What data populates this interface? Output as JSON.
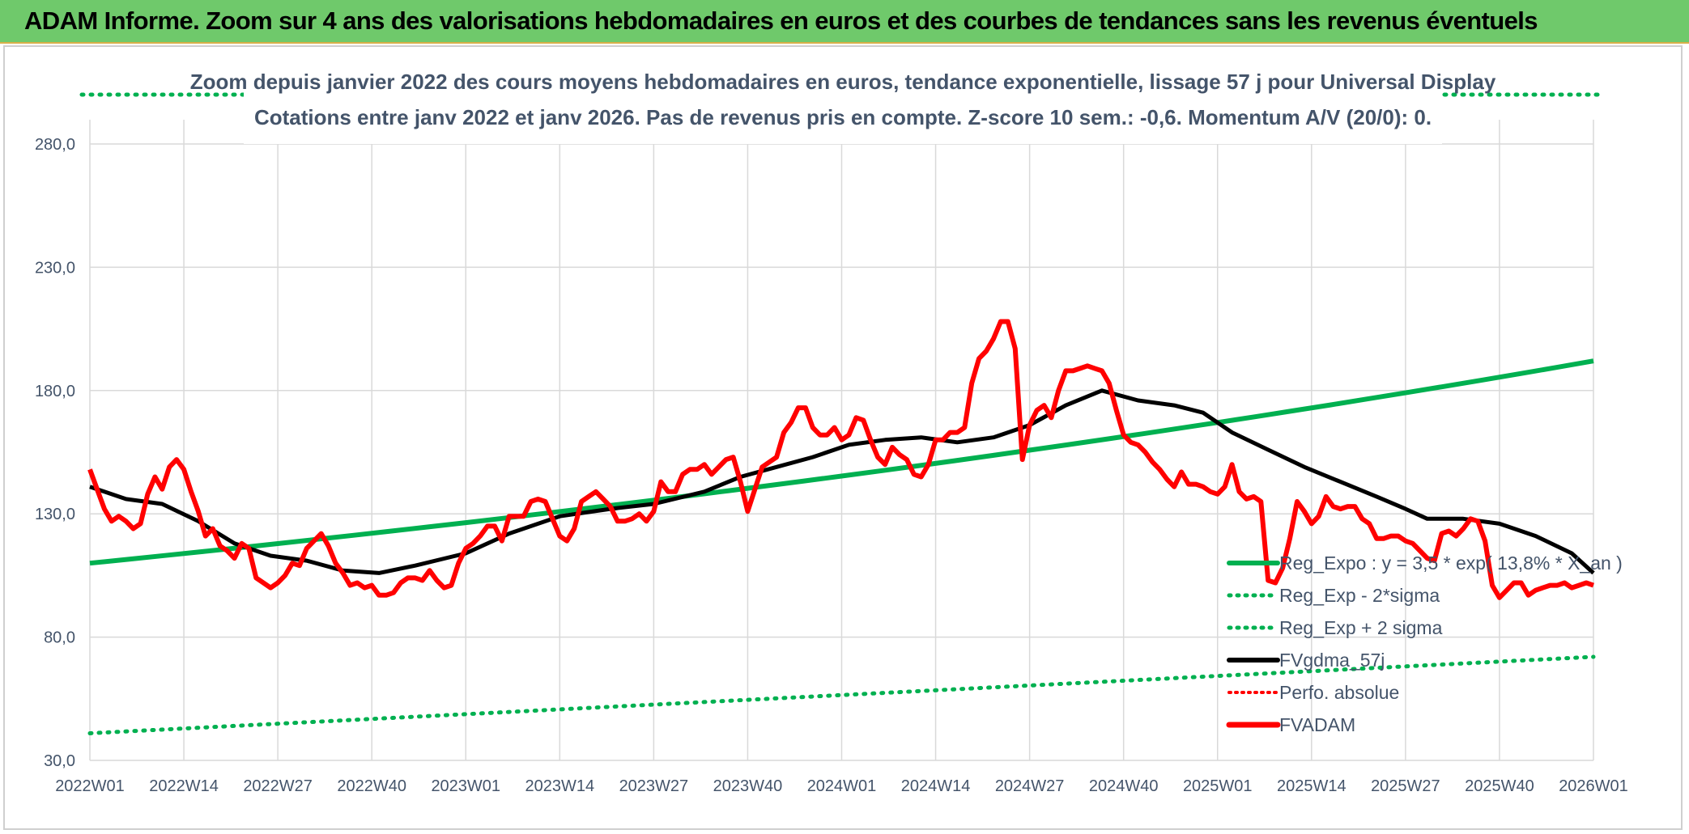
{
  "header": {
    "title": "ADAM Informe. Zoom sur 4 ans des valorisations hebdomadaires en euros et des courbes de tendances sans les revenus éventuels"
  },
  "colors": {
    "banner": "#6fc96b",
    "reg_exp": "#00b050",
    "fvadam": "#ff0000",
    "fvgdma": "#000000",
    "perfo": "#ff0000",
    "grid": "#d9d9d9",
    "text": "#44546a"
  },
  "chart_data": {
    "type": "line",
    "title": [
      "Zoom depuis janvier 2022 des cours moyens hebdomadaires en euros, tendance exponentielle, lissage 57 j pour Universal Display",
      "Cotations entre janv 2022 et janv 2026. Pas de revenus pris en compte. Z-score 10 sem.: -0,6. Momentum A/V (20/0): 0."
    ],
    "x_tick_labels": [
      "2022W01",
      "2022W14",
      "2022W27",
      "2022W40",
      "2023W01",
      "2023W14",
      "2023W27",
      "2023W40",
      "2024W01",
      "2024W14",
      "2024W27",
      "2024W40",
      "2025W01",
      "2025W14",
      "2025W27",
      "2025W40",
      "2026W01"
    ],
    "y_tick_labels": [
      "30,0",
      "80,0",
      "130,0",
      "180,0",
      "230,0",
      "280,0"
    ],
    "y_ticks": [
      30,
      80,
      130,
      180,
      230,
      280
    ],
    "ylim": [
      30,
      280
    ],
    "x_weeks": [
      0,
      208
    ],
    "legend": [
      {
        "key": "reg_exp",
        "label": "Reg_Expo : y = 3,5 * exp( 13,8% * X_an )",
        "style": "solid-green"
      },
      {
        "key": "reg_minus",
        "label": "Reg_Exp - 2*sigma",
        "style": "dotted-green"
      },
      {
        "key": "reg_plus",
        "label": "Reg_Exp + 2 sigma",
        "style": "dotted-green"
      },
      {
        "key": "fvgdma",
        "label": "FVgdma_57j",
        "style": "solid-black"
      },
      {
        "key": "perfo",
        "label": "Perfo. absolue",
        "style": "dotted-red"
      },
      {
        "key": "fvadam",
        "label": "FVADAM",
        "style": "solid-red"
      }
    ],
    "series": {
      "reg_exp": {
        "week": [
          0,
          208
        ],
        "start": 110,
        "end": 192
      },
      "reg_minus": {
        "week": [
          0,
          208
        ],
        "start": 41,
        "end": 72
      },
      "reg_plus": {
        "note": "above plotted range, visible at top edge",
        "value": 300
      },
      "fvgdma": [
        [
          0,
          141
        ],
        [
          5,
          136
        ],
        [
          10,
          134
        ],
        [
          15,
          127
        ],
        [
          20,
          118
        ],
        [
          25,
          113
        ],
        [
          30,
          111
        ],
        [
          35,
          107
        ],
        [
          40,
          106
        ],
        [
          45,
          109
        ],
        [
          52,
          114
        ],
        [
          58,
          122
        ],
        [
          65,
          129
        ],
        [
          72,
          132
        ],
        [
          78,
          134
        ],
        [
          85,
          139
        ],
        [
          90,
          145
        ],
        [
          95,
          149
        ],
        [
          100,
          153
        ],
        [
          105,
          158
        ],
        [
          110,
          160
        ],
        [
          115,
          161
        ],
        [
          120,
          159
        ],
        [
          125,
          161
        ],
        [
          130,
          166
        ],
        [
          135,
          174
        ],
        [
          140,
          180
        ],
        [
          145,
          176
        ],
        [
          150,
          174
        ],
        [
          154,
          171
        ],
        [
          158,
          163
        ],
        [
          163,
          156
        ],
        [
          168,
          149
        ],
        [
          173,
          143
        ],
        [
          178,
          137
        ],
        [
          182,
          132
        ],
        [
          185,
          128
        ],
        [
          190,
          128
        ],
        [
          195,
          126
        ],
        [
          200,
          121
        ],
        [
          205,
          114
        ],
        [
          208,
          106
        ]
      ],
      "fvadam": [
        [
          0,
          148
        ],
        [
          1,
          140
        ],
        [
          2,
          132
        ],
        [
          3,
          127
        ],
        [
          4,
          129
        ],
        [
          5,
          127
        ],
        [
          6,
          124
        ],
        [
          7,
          126
        ],
        [
          8,
          138
        ],
        [
          9,
          145
        ],
        [
          10,
          140
        ],
        [
          11,
          149
        ],
        [
          12,
          152
        ],
        [
          13,
          148
        ],
        [
          14,
          139
        ],
        [
          15,
          131
        ],
        [
          16,
          121
        ],
        [
          17,
          124
        ],
        [
          18,
          117
        ],
        [
          19,
          115
        ],
        [
          20,
          112
        ],
        [
          21,
          118
        ],
        [
          22,
          116
        ],
        [
          23,
          104
        ],
        [
          24,
          102
        ],
        [
          25,
          100
        ],
        [
          26,
          102
        ],
        [
          27,
          105
        ],
        [
          28,
          110
        ],
        [
          29,
          109
        ],
        [
          30,
          116
        ],
        [
          31,
          119
        ],
        [
          32,
          122
        ],
        [
          33,
          117
        ],
        [
          34,
          110
        ],
        [
          35,
          106
        ],
        [
          36,
          101
        ],
        [
          37,
          102
        ],
        [
          38,
          100
        ],
        [
          39,
          101
        ],
        [
          40,
          97
        ],
        [
          41,
          97
        ],
        [
          42,
          98
        ],
        [
          43,
          102
        ],
        [
          44,
          104
        ],
        [
          45,
          104
        ],
        [
          46,
          103
        ],
        [
          47,
          107
        ],
        [
          48,
          103
        ],
        [
          49,
          100
        ],
        [
          50,
          101
        ],
        [
          51,
          110
        ],
        [
          52,
          116
        ],
        [
          53,
          118
        ],
        [
          54,
          121
        ],
        [
          55,
          125
        ],
        [
          56,
          125
        ],
        [
          57,
          119
        ],
        [
          58,
          129
        ],
        [
          59,
          129
        ],
        [
          60,
          129
        ],
        [
          61,
          135
        ],
        [
          62,
          136
        ],
        [
          63,
          135
        ],
        [
          64,
          128
        ],
        [
          65,
          121
        ],
        [
          66,
          119
        ],
        [
          67,
          124
        ],
        [
          68,
          135
        ],
        [
          69,
          137
        ],
        [
          70,
          139
        ],
        [
          71,
          136
        ],
        [
          72,
          133
        ],
        [
          73,
          127
        ],
        [
          74,
          127
        ],
        [
          75,
          128
        ],
        [
          76,
          130
        ],
        [
          77,
          127
        ],
        [
          78,
          131
        ],
        [
          79,
          143
        ],
        [
          80,
          139
        ],
        [
          81,
          139
        ],
        [
          82,
          146
        ],
        [
          83,
          148
        ],
        [
          84,
          148
        ],
        [
          85,
          150
        ],
        [
          86,
          146
        ],
        [
          87,
          149
        ],
        [
          88,
          152
        ],
        [
          89,
          153
        ],
        [
          90,
          143
        ],
        [
          91,
          131
        ],
        [
          92,
          140
        ],
        [
          93,
          149
        ],
        [
          94,
          151
        ],
        [
          95,
          153
        ],
        [
          96,
          163
        ],
        [
          97,
          167
        ],
        [
          98,
          173
        ],
        [
          99,
          173
        ],
        [
          100,
          165
        ],
        [
          101,
          162
        ],
        [
          102,
          162
        ],
        [
          103,
          165
        ],
        [
          104,
          160
        ],
        [
          105,
          162
        ],
        [
          106,
          169
        ],
        [
          107,
          168
        ],
        [
          108,
          160
        ],
        [
          109,
          153
        ],
        [
          110,
          150
        ],
        [
          111,
          157
        ],
        [
          112,
          154
        ],
        [
          113,
          152
        ],
        [
          114,
          146
        ],
        [
          115,
          145
        ],
        [
          116,
          150
        ],
        [
          117,
          160
        ],
        [
          118,
          160
        ],
        [
          119,
          163
        ],
        [
          120,
          163
        ],
        [
          121,
          165
        ],
        [
          122,
          183
        ],
        [
          123,
          193
        ],
        [
          124,
          196
        ],
        [
          125,
          201
        ],
        [
          126,
          208
        ],
        [
          127,
          208
        ],
        [
          128,
          197
        ],
        [
          129,
          152
        ],
        [
          130,
          166
        ],
        [
          131,
          172
        ],
        [
          132,
          174
        ],
        [
          133,
          169
        ],
        [
          134,
          180
        ],
        [
          135,
          188
        ],
        [
          136,
          188
        ],
        [
          137,
          189
        ],
        [
          138,
          190
        ],
        [
          139,
          189
        ],
        [
          140,
          188
        ],
        [
          141,
          183
        ],
        [
          142,
          172
        ],
        [
          143,
          162
        ],
        [
          144,
          159
        ],
        [
          145,
          158
        ],
        [
          146,
          155
        ],
        [
          147,
          151
        ],
        [
          148,
          148
        ],
        [
          149,
          144
        ],
        [
          150,
          141
        ],
        [
          151,
          147
        ],
        [
          152,
          142
        ],
        [
          153,
          142
        ],
        [
          154,
          141
        ],
        [
          155,
          139
        ],
        [
          156,
          138
        ],
        [
          157,
          141
        ],
        [
          158,
          150
        ],
        [
          159,
          139
        ],
        [
          160,
          136
        ],
        [
          161,
          137
        ],
        [
          162,
          135
        ],
        [
          163,
          103
        ],
        [
          164,
          102
        ],
        [
          165,
          108
        ],
        [
          166,
          120
        ],
        [
          167,
          135
        ],
        [
          168,
          131
        ],
        [
          169,
          126
        ],
        [
          170,
          129
        ],
        [
          171,
          137
        ],
        [
          172,
          133
        ],
        [
          173,
          132
        ],
        [
          174,
          133
        ],
        [
          175,
          133
        ],
        [
          176,
          128
        ],
        [
          177,
          126
        ],
        [
          178,
          120
        ],
        [
          179,
          120
        ],
        [
          180,
          121
        ],
        [
          181,
          121
        ],
        [
          182,
          119
        ],
        [
          183,
          118
        ],
        [
          184,
          115
        ],
        [
          185,
          112
        ],
        [
          186,
          111
        ],
        [
          187,
          122
        ],
        [
          188,
          123
        ],
        [
          189,
          121
        ],
        [
          190,
          124
        ],
        [
          191,
          128
        ],
        [
          192,
          127
        ],
        [
          193,
          119
        ],
        [
          194,
          101
        ],
        [
          195,
          96
        ],
        [
          196,
          99
        ],
        [
          197,
          102
        ],
        [
          198,
          102
        ],
        [
          199,
          97
        ],
        [
          200,
          99
        ],
        [
          201,
          100
        ],
        [
          202,
          101
        ],
        [
          203,
          101
        ],
        [
          204,
          102
        ],
        [
          205,
          100
        ],
        [
          206,
          101
        ],
        [
          207,
          102
        ],
        [
          208,
          101
        ]
      ]
    }
  }
}
